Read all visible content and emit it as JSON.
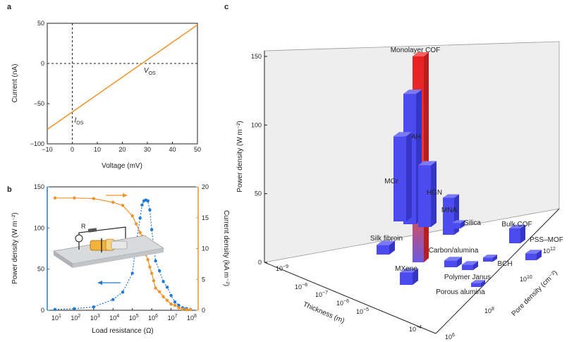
{
  "colors": {
    "orange": "#f0932b",
    "blue": "#1f7ad4",
    "bar_blue": "#4b4bf0",
    "red": "#e53030"
  },
  "chart_data": [
    {
      "panel": "a",
      "type": "line",
      "xlabel": "Voltage (mV)",
      "ylabel": "Current (nA)",
      "xlim": [
        -10,
        50
      ],
      "ylim": [
        -100,
        50
      ],
      "x_ticks": [
        "−10",
        "0",
        "10",
        "20",
        "30",
        "40",
        "50"
      ],
      "y_ticks": [
        "50",
        "0",
        "−50",
        "−100"
      ],
      "line": {
        "x": [
          -10,
          50
        ],
        "y": [
          -82,
          48
        ]
      },
      "annotations": {
        "v_os": "V",
        "v_os_sub": "OS",
        "i_os": "I",
        "i_os_sub": "OS"
      },
      "v_os_point": {
        "x": 28,
        "y": 0
      },
      "i_os_point": {
        "x": 0,
        "y": -60
      }
    },
    {
      "panel": "b",
      "type": "scatter",
      "xlabel": "Load resistance (Ω)",
      "ylabel_left": "Power density (W m⁻²)",
      "ylabel_right": "Current density (kA m⁻²)",
      "x_log_range": [
        0.6,
        8.4
      ],
      "ylim_left": [
        0,
        150
      ],
      "ylim_right": [
        0,
        20
      ],
      "x_ticks": [
        {
          "b": "10",
          "e": "1"
        },
        {
          "b": "10",
          "e": "2"
        },
        {
          "b": "10",
          "e": "3"
        },
        {
          "b": "10",
          "e": "4"
        },
        {
          "b": "10",
          "e": "5"
        },
        {
          "b": "10",
          "e": "6"
        },
        {
          "b": "10",
          "e": "7"
        },
        {
          "b": "10",
          "e": "8"
        }
      ],
      "yl_ticks": [
        "150",
        "100",
        "50",
        "0"
      ],
      "yr_ticks": [
        "20",
        "15",
        "10",
        "5",
        "0"
      ],
      "series": [
        {
          "name": "Power density",
          "axis": "left",
          "color": "#1f7ad4",
          "logx": [
            1,
            2,
            3,
            4,
            4.5,
            5,
            5.2,
            5.4,
            5.5,
            5.6,
            5.7,
            5.8,
            5.9,
            6,
            6.1,
            6.2,
            6.4,
            6.6,
            6.8,
            7,
            7.2,
            7.4,
            7.6,
            7.8,
            8
          ],
          "y": [
            1,
            2,
            4,
            13,
            22,
            45,
            82,
            112,
            128,
            133,
            134,
            133,
            122,
            98,
            78,
            60,
            48,
            35,
            28,
            18,
            10,
            6,
            3,
            2,
            1
          ]
        },
        {
          "name": "Current density",
          "axis": "right",
          "color": "#f0932b",
          "logx": [
            1,
            2,
            3,
            4,
            4.5,
            5,
            5.2,
            5.4,
            5.5,
            5.6,
            5.7,
            5.8,
            5.9,
            6,
            6.1,
            6.2,
            6.4,
            6.6,
            6.8,
            7,
            7.2,
            7.4,
            7.6,
            7.8,
            8
          ],
          "y": [
            18.2,
            18.2,
            18.1,
            17.5,
            17,
            15.3,
            14,
            12.6,
            12,
            10.2,
            9,
            8.2,
            7,
            6,
            4.8,
            3.6,
            3,
            2.2,
            1.6,
            1,
            0.8,
            0.4,
            0.2,
            0.1,
            0.1
          ]
        }
      ]
    },
    {
      "panel": "c",
      "type": "bar3d",
      "zlabel": "Power density (W m⁻²)",
      "xlabel": "Thickness (m)",
      "ylabel": "Pore density (cm⁻²)",
      "z_ticks": [
        "150",
        "100",
        "50",
        "0"
      ],
      "thickness_ticks": [
        {
          "b": "10",
          "e": "−9"
        },
        {
          "b": "10",
          "e": "−8"
        },
        {
          "b": "10",
          "e": "−7"
        },
        {
          "b": "10",
          "e": "−6"
        },
        {
          "b": "10",
          "e": "−5"
        },
        {
          "b": "10",
          "e": "−4"
        }
      ],
      "pore_ticks": [
        {
          "b": "10",
          "e": "6"
        },
        {
          "b": "10",
          "e": "8"
        },
        {
          "b": "10",
          "e": "10"
        },
        {
          "b": "10",
          "e": "12"
        }
      ],
      "bars": [
        {
          "name": "Monolayer COF",
          "value": 150
        },
        {
          "name": "PAH",
          "value": 95
        },
        {
          "name": "MGr",
          "value": 62
        },
        {
          "name": "HGN",
          "value": 45
        },
        {
          "name": "MNA",
          "value": 27
        },
        {
          "name": "Silica",
          "value": 4
        },
        {
          "name": "Bulk COF",
          "value": 11
        },
        {
          "name": "PSS–MOF",
          "value": 5
        },
        {
          "name": "Silk fibroin",
          "value": 7
        },
        {
          "name": "Carbon/alumina",
          "value": 5
        },
        {
          "name": "BCH",
          "value": 3
        },
        {
          "name": "MXene",
          "value": 9
        },
        {
          "name": "Polymer Janus",
          "value": 4
        },
        {
          "name": "Porous alumina",
          "value": 3
        }
      ]
    }
  ]
}
